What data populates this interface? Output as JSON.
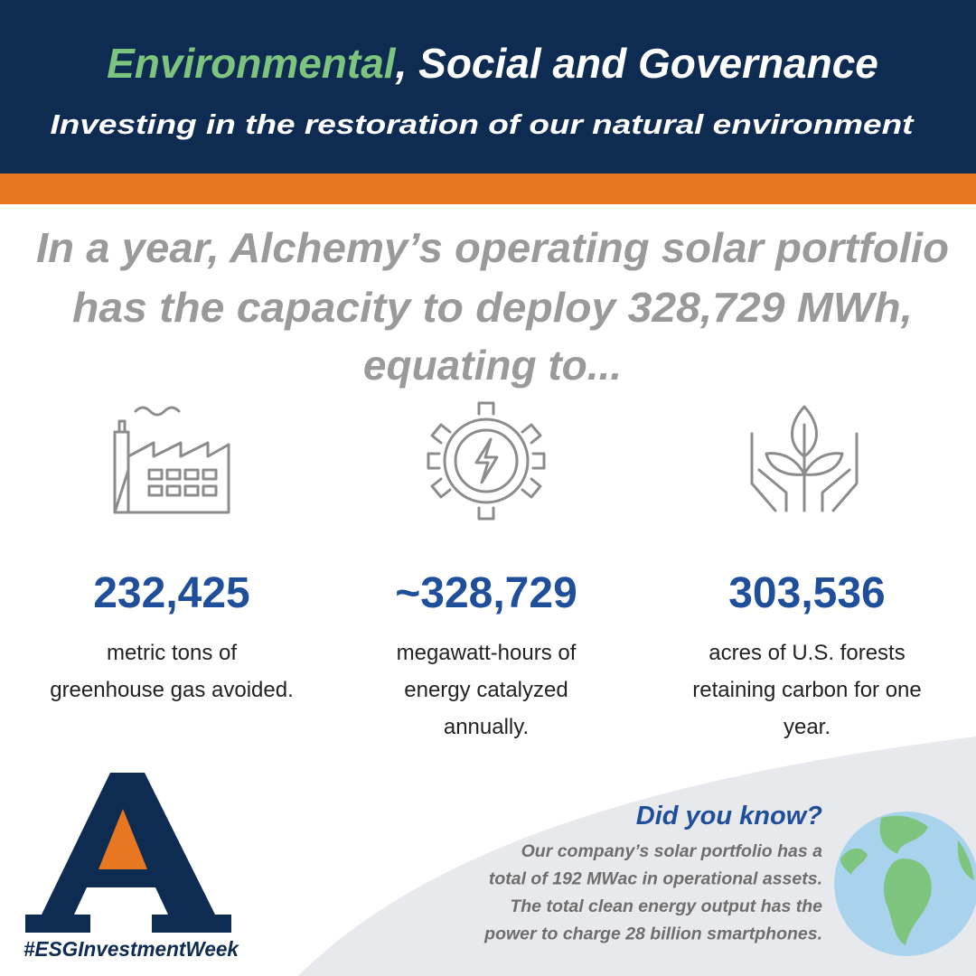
{
  "header": {
    "title_highlight": "Environmental",
    "title_rest": ", Social and Governance",
    "subtitle": "Investing in the restoration of our natural environment"
  },
  "intro": {
    "lines": [
      "In a year, Alchemy’s operating solar portfolio",
      "has the capacity to deploy 328,729 MWh,",
      "equating to..."
    ]
  },
  "stats": [
    {
      "value": "232,425",
      "description": [
        "metric tons of",
        "greenhouse gas avoided."
      ]
    },
    {
      "value": "~328,729",
      "description": [
        "megawatt-hours of",
        "energy catalyzed",
        "annually."
      ]
    },
    {
      "value": "303,536",
      "description": [
        "acres of U.S. forests",
        "retaining carbon for one",
        "year."
      ]
    }
  ],
  "did_you_know": {
    "title": "Did you know?",
    "lines": [
      "Our company’s solar portfolio has a",
      "total of 192 MWac in operational assets.",
      "The total clean energy output has the",
      "power to charge 28 billion smartphones."
    ]
  },
  "hashtag": "#ESGInvestmentWeek"
}
